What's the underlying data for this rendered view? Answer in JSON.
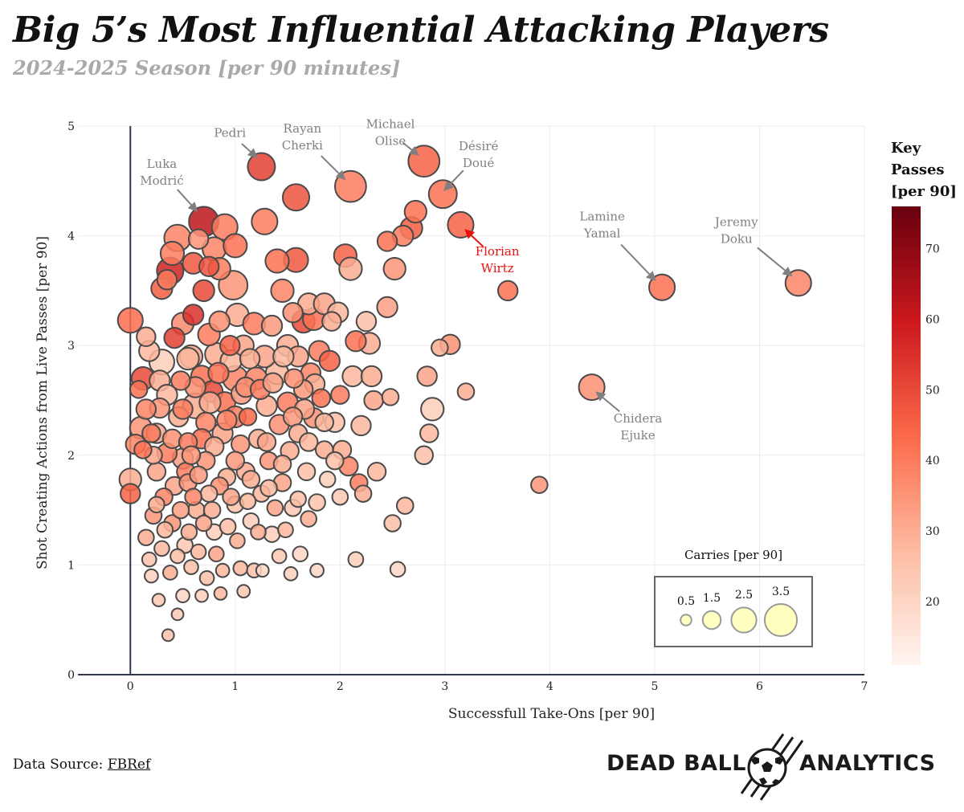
{
  "header": {
    "title": "Big 5’s Most Influential Attacking Players",
    "subtitle": "2024-2025 Season [per 90 minutes]"
  },
  "footer": {
    "source_label": "Data Source:",
    "source_link": "FBRef",
    "brand_left": "DEAD BALL",
    "brand_right": "ANALYTICS"
  },
  "colors": {
    "low": "#fff5f0",
    "mid1": "#fcbba1",
    "mid2": "#fb6a4a",
    "mid3": "#cb181d",
    "high": "#67000d",
    "highlight": "#e8120c",
    "annotation": "#808080",
    "size_legend_fill": "#ffffc0"
  },
  "chart_data": {
    "type": "scatter",
    "xlabel": "Successfull Take-Ons [per 90]",
    "ylabel": "Shot Creating Actions from Live Passes [per 90]",
    "xlim": [
      -0.5,
      7
    ],
    "ylim": [
      0,
      5
    ],
    "x_ticks": [
      0,
      1,
      2,
      3,
      4,
      5,
      6,
      7
    ],
    "y_ticks": [
      0,
      1,
      2,
      3,
      4,
      5
    ],
    "grid": true,
    "size_variable": "Carries [per 90]",
    "color_variable": "Key Passes [per 90]",
    "colorbar": {
      "title": [
        "Key",
        "Passes",
        "[per 90]"
      ],
      "range": [
        11,
        76
      ],
      "ticks": [
        20,
        30,
        40,
        50,
        60,
        70
      ]
    },
    "size_legend": {
      "title": "Carries [per 90]",
      "values": [
        0.5,
        1.5,
        2.5,
        3.5
      ]
    },
    "labeled_points": [
      {
        "name": "Luka Modrić",
        "x": 0.7,
        "y": 4.13,
        "carries": 2.8,
        "key_passes": 62
      },
      {
        "name": "Pedri",
        "x": 1.25,
        "y": 4.63,
        "carries": 2.5,
        "key_passes": 52
      },
      {
        "name": "Rayan Cherki",
        "x": 2.1,
        "y": 4.45,
        "carries": 3.0,
        "key_passes": 40
      },
      {
        "name": "Michael Olise",
        "x": 2.8,
        "y": 4.68,
        "carries": 3.0,
        "key_passes": 45
      },
      {
        "name": "Désiré Doué",
        "x": 2.98,
        "y": 4.38,
        "carries": 2.6,
        "key_passes": 42
      },
      {
        "name": "Florian Wirtz",
        "x": 3.15,
        "y": 4.1,
        "carries": 2.3,
        "key_passes": 45
      },
      {
        "name": "Lamine Yamal",
        "x": 5.07,
        "y": 3.53,
        "carries": 2.3,
        "key_passes": 42
      },
      {
        "name": "Jeremy Doku",
        "x": 6.37,
        "y": 3.57,
        "carries": 2.3,
        "key_passes": 38
      },
      {
        "name": "Chidera Ejuke",
        "x": 4.4,
        "y": 2.62,
        "carries": 2.3,
        "key_passes": 36
      }
    ],
    "labels": [
      {
        "lines": [
          "Luka",
          "Modrić"
        ],
        "x": 0.3,
        "y": 4.62,
        "ax": 0.63,
        "ay": 4.23,
        "highlight": false
      },
      {
        "lines": [
          "Pedri"
        ],
        "x": 0.95,
        "y": 4.9,
        "ax": 1.2,
        "ay": 4.72,
        "highlight": false
      },
      {
        "lines": [
          "Rayan",
          "Cherki"
        ],
        "x": 1.64,
        "y": 4.94,
        "ax": 2.04,
        "ay": 4.52,
        "highlight": false
      },
      {
        "lines": [
          "Michael",
          "Olise"
        ],
        "x": 2.48,
        "y": 4.98,
        "ax": 2.74,
        "ay": 4.74,
        "highlight": false
      },
      {
        "lines": [
          "Désiré",
          "Doué"
        ],
        "x": 3.32,
        "y": 4.78,
        "ax": 3.0,
        "ay": 4.42,
        "highlight": false
      },
      {
        "lines": [
          "Florian",
          "Wirtz"
        ],
        "x": 3.5,
        "y": 3.82,
        "ax": 3.2,
        "ay": 4.05,
        "highlight": true
      },
      {
        "lines": [
          "Lamine",
          "Yamal"
        ],
        "x": 4.5,
        "y": 4.14,
        "ax": 5.0,
        "ay": 3.6,
        "highlight": false
      },
      {
        "lines": [
          "Jeremy",
          "Doku"
        ],
        "x": 5.78,
        "y": 4.09,
        "ax": 6.3,
        "ay": 3.64,
        "highlight": false
      },
      {
        "lines": [
          "Chidera",
          "Ejuke"
        ],
        "x": 4.84,
        "y": 2.3,
        "ax": 4.45,
        "ay": 2.57,
        "highlight": false
      }
    ],
    "points": [
      [
        0,
        3.23,
        2.2,
        43
      ],
      [
        0,
        1.78,
        1.8,
        30
      ],
      [
        0,
        1.65,
        1.5,
        45
      ],
      [
        0.05,
        2.1,
        1.5,
        38
      ],
      [
        0.08,
        2.6,
        1.2,
        42
      ],
      [
        0.1,
        2.25,
        1.8,
        35
      ],
      [
        0.12,
        2.7,
        1.9,
        50
      ],
      [
        0.15,
        3.08,
        1.4,
        30
      ],
      [
        0.18,
        2.95,
        1.6,
        28
      ],
      [
        0.2,
        2.2,
        1.3,
        40
      ],
      [
        0.22,
        2.0,
        1.2,
        32
      ],
      [
        0.25,
        1.55,
        1.0,
        30
      ],
      [
        0.28,
        2.43,
        1.5,
        35
      ],
      [
        0.3,
        2.85,
        2.2,
        22
      ],
      [
        0.3,
        3.52,
        1.7,
        46
      ],
      [
        0.33,
        1.32,
        1.0,
        28
      ],
      [
        0.35,
        3.6,
        1.5,
        40
      ],
      [
        0.38,
        3.68,
        2.4,
        58
      ],
      [
        0.4,
        3.84,
        2.0,
        40
      ],
      [
        0.42,
        3.07,
        1.6,
        52
      ],
      [
        0.45,
        3.98,
        2.4,
        38
      ],
      [
        0.46,
        2.35,
        1.5,
        30
      ],
      [
        0.48,
        2.68,
        1.4,
        40
      ],
      [
        0.5,
        3.2,
        1.8,
        37
      ],
      [
        0.5,
        1.97,
        1.6,
        33
      ],
      [
        0.52,
        1.18,
        1.0,
        24
      ],
      [
        0.55,
        2.12,
        1.3,
        40
      ],
      [
        0.55,
        1.75,
        1.2,
        35
      ],
      [
        0.58,
        2.9,
        1.9,
        32
      ],
      [
        0.6,
        3.75,
        1.7,
        47
      ],
      [
        0.6,
        3.28,
        1.6,
        55
      ],
      [
        0.62,
        2.45,
        2.2,
        30
      ],
      [
        0.63,
        1.5,
        1.1,
        30
      ],
      [
        0.65,
        3.97,
        1.5,
        35
      ],
      [
        0.68,
        2.72,
        1.7,
        42
      ],
      [
        0.7,
        3.5,
        1.7,
        50
      ],
      [
        0.72,
        2.3,
        1.5,
        38
      ],
      [
        0.72,
        1.95,
        1.3,
        35
      ],
      [
        0.75,
        3.72,
        1.5,
        48
      ],
      [
        0.75,
        3.1,
        1.8,
        40
      ],
      [
        0.75,
        1.65,
        1.1,
        28
      ],
      [
        0.78,
        2.58,
        1.7,
        50
      ],
      [
        0.8,
        3.88,
        2.0,
        38
      ],
      [
        0.8,
        1.3,
        1.0,
        22
      ],
      [
        0.82,
        2.92,
        1.9,
        30
      ],
      [
        0.85,
        3.7,
        1.8,
        40
      ],
      [
        0.85,
        3.22,
        1.6,
        36
      ],
      [
        0.88,
        2.2,
        1.6,
        32
      ],
      [
        0.88,
        0.95,
        0.7,
        28
      ],
      [
        0.9,
        4.08,
        2.3,
        40
      ],
      [
        0.9,
        2.48,
        1.7,
        42
      ],
      [
        0.92,
        1.8,
        1.2,
        30
      ],
      [
        0.95,
        3.0,
        1.5,
        45
      ],
      [
        0.98,
        3.55,
        2.7,
        35
      ],
      [
        1.0,
        3.91,
        2.0,
        42
      ],
      [
        1.0,
        2.7,
        2.2,
        38
      ],
      [
        1.0,
        2.35,
        1.7,
        40
      ],
      [
        1.0,
        1.55,
        1.1,
        25
      ],
      [
        1.02,
        3.28,
        1.9,
        30
      ],
      [
        1.05,
        2.1,
        1.3,
        35
      ],
      [
        1.05,
        0.97,
        0.8,
        28
      ],
      [
        1.08,
        3.0,
        1.6,
        32
      ],
      [
        1.1,
        2.62,
        1.5,
        36
      ],
      [
        1.1,
        1.85,
        1.3,
        30
      ],
      [
        1.12,
        2.35,
        1.2,
        44
      ],
      [
        1.15,
        1.4,
        1.0,
        22
      ],
      [
        1.18,
        3.2,
        1.8,
        40
      ],
      [
        1.2,
        2.7,
        1.8,
        38
      ],
      [
        1.22,
        2.15,
        1.4,
        30
      ],
      [
        1.25,
        1.65,
        1.1,
        28
      ],
      [
        1.28,
        4.13,
        2.3,
        40
      ],
      [
        1.28,
        2.9,
        1.8,
        32
      ],
      [
        1.3,
        2.45,
        1.6,
        30
      ],
      [
        1.32,
        1.95,
        1.2,
        35
      ],
      [
        1.35,
        3.18,
        1.6,
        34
      ],
      [
        1.35,
        1.28,
        1.0,
        22
      ],
      [
        1.4,
        3.77,
        2.0,
        42
      ],
      [
        1.4,
        2.75,
        1.9,
        28
      ],
      [
        1.42,
        2.28,
        1.5,
        36
      ],
      [
        1.45,
        3.5,
        1.9,
        38
      ],
      [
        1.45,
        1.75,
        1.2,
        32
      ],
      [
        1.5,
        3.0,
        1.7,
        30
      ],
      [
        1.5,
        2.48,
        1.6,
        40
      ],
      [
        1.52,
        2.04,
        1.3,
        30
      ],
      [
        1.55,
        3.3,
        1.5,
        36
      ],
      [
        1.55,
        1.52,
        1.1,
        24
      ],
      [
        1.58,
        4.35,
        2.4,
        48
      ],
      [
        1.58,
        3.78,
        2.1,
        47
      ],
      [
        1.6,
        2.9,
        1.6,
        32
      ],
      [
        1.6,
        2.2,
        1.3,
        30
      ],
      [
        1.62,
        1.1,
        0.9,
        20
      ],
      [
        1.65,
        3.22,
        1.9,
        50
      ],
      [
        1.65,
        2.6,
        1.4,
        34
      ],
      [
        1.68,
        1.85,
        1.2,
        26
      ],
      [
        1.7,
        3.38,
        1.7,
        30
      ],
      [
        1.72,
        2.75,
        1.5,
        38
      ],
      [
        1.75,
        3.24,
        1.8,
        42
      ],
      [
        1.75,
        2.34,
        1.5,
        36
      ],
      [
        1.78,
        1.57,
        1.1,
        25
      ],
      [
        1.8,
        2.95,
        1.6,
        40
      ],
      [
        1.82,
        2.52,
        1.3,
        42
      ],
      [
        1.85,
        3.38,
        1.7,
        32
      ],
      [
        1.85,
        2.05,
        1.2,
        30
      ],
      [
        1.88,
        1.78,
        1.0,
        22
      ],
      [
        1.9,
        2.86,
        1.6,
        45
      ],
      [
        1.92,
        3.22,
        1.4,
        30
      ],
      [
        1.95,
        2.3,
        1.5,
        26
      ],
      [
        1.98,
        3.3,
        1.6,
        28
      ],
      [
        2.0,
        2.55,
        1.3,
        40
      ],
      [
        2.0,
        1.62,
        1.0,
        24
      ],
      [
        2.02,
        2.05,
        1.3,
        30
      ],
      [
        2.05,
        3.82,
        1.9,
        45
      ],
      [
        2.08,
        1.9,
        1.4,
        38
      ],
      [
        2.1,
        3.7,
        1.9,
        30
      ],
      [
        2.12,
        2.72,
        1.6,
        28
      ],
      [
        2.15,
        3.04,
        1.6,
        42
      ],
      [
        2.15,
        1.05,
        0.9,
        22
      ],
      [
        2.18,
        1.75,
        1.2,
        40
      ],
      [
        2.2,
        2.27,
        1.5,
        28
      ],
      [
        2.22,
        1.65,
        1.1,
        30
      ],
      [
        2.25,
        3.22,
        1.5,
        26
      ],
      [
        2.28,
        3.02,
        1.7,
        30
      ],
      [
        2.3,
        2.72,
        1.6,
        30
      ],
      [
        2.32,
        2.5,
        1.4,
        32
      ],
      [
        2.35,
        1.85,
        1.3,
        28
      ],
      [
        2.45,
        3.95,
        1.5,
        42
      ],
      [
        2.45,
        3.35,
        1.6,
        33
      ],
      [
        2.48,
        2.53,
        1.1,
        30
      ],
      [
        2.5,
        1.38,
        1.1,
        26
      ],
      [
        2.52,
        3.7,
        1.8,
        35
      ],
      [
        2.55,
        0.96,
        0.9,
        20
      ],
      [
        2.6,
        4.0,
        1.6,
        40
      ],
      [
        2.62,
        1.54,
        1.1,
        28
      ],
      [
        2.68,
        4.07,
        1.8,
        46
      ],
      [
        2.72,
        4.22,
        1.8,
        42
      ],
      [
        2.8,
        2.0,
        1.3,
        26
      ],
      [
        2.83,
        2.72,
        1.5,
        32
      ],
      [
        2.85,
        2.2,
        1.3,
        28
      ],
      [
        2.88,
        2.42,
        1.9,
        22
      ],
      [
        2.95,
        2.98,
        1.1,
        30
      ],
      [
        3.05,
        3.01,
        1.5,
        36
      ],
      [
        3.2,
        2.58,
        1.1,
        30
      ],
      [
        3.6,
        3.5,
        1.5,
        42
      ],
      [
        3.9,
        1.73,
        1.1,
        35
      ],
      [
        0.15,
        1.25,
        1.0,
        30
      ],
      [
        0.18,
        1.05,
        0.8,
        25
      ],
      [
        0.2,
        0.9,
        0.7,
        22
      ],
      [
        0.22,
        1.45,
        1.1,
        35
      ],
      [
        0.25,
        1.85,
        1.3,
        32
      ],
      [
        0.27,
        0.68,
        0.6,
        24
      ],
      [
        0.3,
        1.15,
        0.9,
        28
      ],
      [
        0.32,
        1.62,
        1.2,
        38
      ],
      [
        0.35,
        2.02,
        1.5,
        40
      ],
      [
        0.36,
        0.36,
        0.5,
        26
      ],
      [
        0.38,
        0.93,
        0.8,
        30
      ],
      [
        0.4,
        1.38,
        1.1,
        35
      ],
      [
        0.42,
        1.72,
        1.3,
        32
      ],
      [
        0.45,
        0.55,
        0.5,
        24
      ],
      [
        0.45,
        1.08,
        0.8,
        26
      ],
      [
        0.48,
        1.5,
        1.1,
        33
      ],
      [
        0.5,
        0.72,
        0.7,
        20
      ],
      [
        0.53,
        1.85,
        1.3,
        40
      ],
      [
        0.56,
        1.3,
        1.0,
        30
      ],
      [
        0.58,
        0.98,
        0.8,
        26
      ],
      [
        0.6,
        1.62,
        1.1,
        38
      ],
      [
        0.65,
        1.12,
        0.9,
        28
      ],
      [
        0.68,
        0.72,
        0.6,
        22
      ],
      [
        0.7,
        1.38,
        1.0,
        32
      ],
      [
        0.73,
        0.88,
        0.8,
        26
      ],
      [
        0.78,
        1.5,
        1.1,
        30
      ],
      [
        0.82,
        1.1,
        0.9,
        32
      ],
      [
        0.86,
        0.74,
        0.6,
        28
      ],
      [
        0.93,
        1.35,
        1.0,
        26
      ],
      [
        0.96,
        1.62,
        1.1,
        32
      ],
      [
        1.02,
        1.22,
        0.9,
        30
      ],
      [
        1.08,
        0.76,
        0.6,
        24
      ],
      [
        1.12,
        1.58,
        1.0,
        28
      ],
      [
        1.18,
        0.95,
        0.8,
        26
      ],
      [
        1.22,
        1.3,
        0.9,
        30
      ],
      [
        1.26,
        0.95,
        0.6,
        20
      ],
      [
        1.32,
        1.7,
        1.1,
        28
      ],
      [
        1.38,
        1.52,
        1.0,
        32
      ],
      [
        1.42,
        1.08,
        0.8,
        24
      ],
      [
        1.48,
        1.32,
        0.9,
        28
      ],
      [
        1.53,
        0.92,
        0.7,
        22
      ],
      [
        1.6,
        1.6,
        1.0,
        26
      ],
      [
        1.7,
        1.42,
        1.0,
        30
      ],
      [
        1.78,
        0.95,
        0.7,
        20
      ],
      [
        0.55,
        2.88,
        1.8,
        28
      ],
      [
        0.62,
        2.62,
        1.6,
        36
      ],
      [
        0.68,
        2.15,
        1.5,
        42
      ],
      [
        0.76,
        2.48,
        1.7,
        30
      ],
      [
        0.84,
        2.75,
        1.6,
        42
      ],
      [
        0.92,
        2.32,
        1.5,
        38
      ],
      [
        0.96,
        2.86,
        1.7,
        28
      ],
      [
        1.06,
        2.56,
        1.6,
        34
      ],
      [
        1.14,
        2.88,
        1.5,
        30
      ],
      [
        1.24,
        2.6,
        1.5,
        40
      ],
      [
        1.36,
        2.66,
        1.5,
        32
      ],
      [
        1.46,
        2.9,
        1.6,
        28
      ],
      [
        1.56,
        2.7,
        1.4,
        36
      ],
      [
        1.66,
        2.42,
        1.5,
        32
      ],
      [
        1.76,
        2.65,
        1.5,
        30
      ],
      [
        0.12,
        2.05,
        1.2,
        42
      ],
      [
        0.15,
        2.42,
        1.5,
        38
      ],
      [
        0.25,
        2.2,
        1.5,
        32
      ],
      [
        0.28,
        2.68,
        1.6,
        30
      ],
      [
        0.35,
        2.55,
        1.6,
        28
      ],
      [
        0.4,
        2.15,
        1.4,
        36
      ],
      [
        0.5,
        2.42,
        1.5,
        40
      ],
      [
        0.58,
        2.0,
        1.3,
        35
      ],
      [
        0.65,
        1.82,
        1.2,
        34
      ],
      [
        0.8,
        2.08,
        1.4,
        30
      ],
      [
        0.85,
        1.72,
        1.2,
        36
      ],
      [
        1.0,
        1.95,
        1.3,
        34
      ],
      [
        1.15,
        1.78,
        1.2,
        30
      ],
      [
        1.3,
        2.12,
        1.3,
        32
      ],
      [
        1.45,
        1.92,
        1.2,
        30
      ],
      [
        1.55,
        2.35,
        1.4,
        34
      ],
      [
        1.7,
        2.12,
        1.3,
        28
      ],
      [
        1.85,
        2.3,
        1.3,
        28
      ],
      [
        1.95,
        1.95,
        1.2,
        26
      ]
    ]
  }
}
